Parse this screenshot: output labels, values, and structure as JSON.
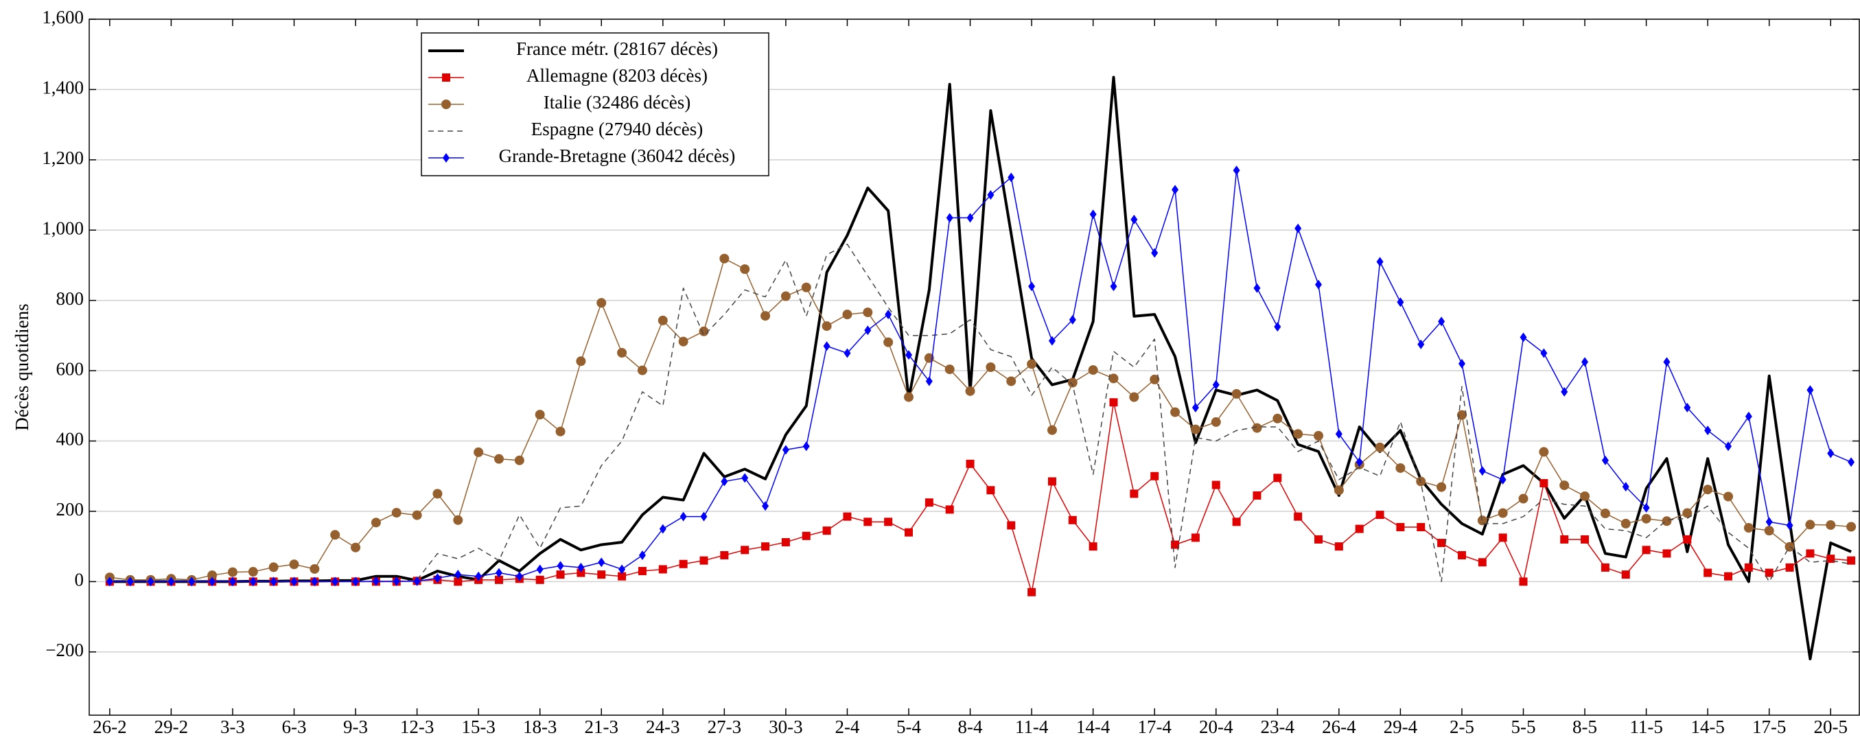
{
  "chart_data": {
    "type": "line",
    "y_label": "Décès quotidiens",
    "categories": [
      "26-2",
      null,
      null,
      "29-2",
      null,
      null,
      "3-3",
      null,
      null,
      "6-3",
      null,
      null,
      "9-3",
      null,
      null,
      "12-3",
      null,
      null,
      "15-3",
      null,
      null,
      "18-3",
      null,
      null,
      "21-3",
      null,
      null,
      "24-3",
      null,
      null,
      "27-3",
      null,
      null,
      "30-3",
      null,
      null,
      "2-4",
      null,
      null,
      "5-4",
      null,
      null,
      "8-4",
      null,
      null,
      "11-4",
      null,
      null,
      "14-4",
      null,
      null,
      "17-4",
      null,
      null,
      "20-4",
      null,
      null,
      "23-4",
      null,
      null,
      "26-4",
      null,
      null,
      "29-4",
      null,
      null,
      "2-5",
      null,
      null,
      "5-5",
      null,
      null,
      "8-5",
      null,
      null,
      "11-5",
      null,
      null,
      "14-5",
      null,
      null,
      "17-5",
      null,
      null,
      "20-5",
      null
    ],
    "ylim": [
      -380,
      1600
    ],
    "yticks": [
      {
        "value": -200,
        "label": "−200"
      },
      0,
      200,
      400,
      600,
      800,
      {
        "value": 1000,
        "label": "1,000"
      },
      {
        "value": 1200,
        "label": "1,200"
      },
      {
        "value": 1400,
        "label": "1,400"
      },
      {
        "value": 1600,
        "label": "1,600"
      }
    ],
    "grid": true,
    "legend": "upper left",
    "series": [
      {
        "name": "France métr. (28167 décès)",
        "color": "#000000",
        "marker": "none",
        "dashed": false,
        "line_width": 4,
        "values": [
          0,
          0,
          0,
          0,
          0,
          0,
          0,
          1,
          1,
          2,
          2,
          3,
          3,
          15,
          15,
          3,
          30,
          15,
          5,
          60,
          30,
          80,
          120,
          90,
          105,
          112,
          190,
          240,
          232,
          365,
          298,
          320,
          292,
          418,
          500,
          880,
          985,
          1120,
          1055,
          520,
          830,
          1415,
          540,
          1340,
          990,
          635,
          560,
          575,
          740,
          1435,
          755,
          760,
          640,
          395,
          545,
          530,
          545,
          515,
          390,
          370,
          245,
          440,
          370,
          430,
          290,
          220,
          165,
          135,
          305,
          330,
          280,
          180,
          245,
          80,
          70,
          265,
          350,
          85,
          350,
          105,
          0,
          585,
          170,
          -220,
          110,
          85
        ]
      },
      {
        "name": "Allemagne (8203 décès)",
        "color": "#e00000",
        "marker": "square",
        "dashed": false,
        "line_width": 1.5,
        "values": [
          0,
          0,
          0,
          0,
          0,
          0,
          0,
          0,
          0,
          0,
          0,
          0,
          0,
          0,
          0,
          2,
          5,
          0,
          5,
          5,
          8,
          5,
          20,
          25,
          20,
          15,
          30,
          35,
          50,
          60,
          75,
          90,
          100,
          112,
          130,
          145,
          185,
          170,
          170,
          140,
          225,
          205,
          335,
          260,
          160,
          -30,
          285,
          175,
          100,
          510,
          250,
          300,
          105,
          125,
          275,
          170,
          245,
          295,
          185,
          120,
          100,
          150,
          190,
          155,
          155,
          110,
          75,
          55,
          125,
          0,
          280,
          120,
          120,
          40,
          20,
          90,
          80,
          120,
          25,
          15,
          40,
          25,
          40,
          80,
          65,
          60
        ]
      },
      {
        "name": "Italie (32486 décès)",
        "color": "#96602e",
        "marker": "circle",
        "dashed": false,
        "line_width": 1.5,
        "values": [
          12,
          5,
          5,
          8,
          5,
          18,
          27,
          28,
          41,
          49,
          36,
          133,
          97,
          168,
          196,
          189,
          250,
          175,
          368,
          349,
          345,
          475,
          427,
          627,
          793,
          651,
          601,
          743,
          683,
          712,
          919,
          889,
          756,
          812,
          837,
          727,
          760,
          766,
          681,
          525,
          636,
          604,
          542,
          610,
          570,
          619,
          431,
          566,
          602,
          578,
          525,
          575,
          482,
          433,
          454,
          534,
          437,
          464,
          420,
          415,
          260,
          333,
          382,
          323,
          285,
          269,
          474,
          174,
          195,
          236,
          369,
          274,
          243,
          194,
          165,
          179,
          172,
          195,
          262,
          242,
          153,
          145,
          99,
          162,
          161,
          156
        ]
      },
      {
        "name": "Espagne (27940 décès)",
        "color": "#444444",
        "marker": "none",
        "dashed": true,
        "line_width": 1.5,
        "values": [
          0,
          0,
          0,
          0,
          0,
          0,
          0,
          0,
          0,
          0,
          0,
          0,
          0,
          0,
          0,
          5,
          80,
          65,
          95,
          60,
          190,
          95,
          210,
          215,
          330,
          400,
          540,
          500,
          835,
          700,
          760,
          830,
          810,
          915,
          755,
          930,
          960,
          870,
          780,
          700,
          700,
          705,
          745,
          660,
          640,
          530,
          610,
          560,
          305,
          655,
          610,
          690,
          40,
          410,
          400,
          430,
          440,
          440,
          370,
          400,
          290,
          325,
          300,
          455,
          280,
          0,
          555,
          165,
          165,
          185,
          235,
          220,
          215,
          150,
          145,
          125,
          175,
          180,
          215,
          140,
          95,
          0,
          100,
          55,
          60,
          50
        ]
      },
      {
        "name": "Grande-Bretagne (36042 décès)",
        "color": "#0000ff",
        "marker": "diamond",
        "dashed": false,
        "line_width": 1.5,
        "values": [
          0,
          0,
          0,
          0,
          0,
          0,
          0,
          0,
          0,
          0,
          0,
          0,
          0,
          1,
          1,
          1,
          10,
          20,
          15,
          25,
          15,
          35,
          45,
          40,
          55,
          35,
          75,
          150,
          185,
          185,
          285,
          295,
          215,
          375,
          385,
          670,
          650,
          715,
          760,
          645,
          570,
          1035,
          1035,
          1100,
          1150,
          840,
          685,
          745,
          1045,
          840,
          1030,
          935,
          1115,
          495,
          560,
          1170,
          835,
          725,
          1005,
          845,
          420,
          340,
          910,
          795,
          675,
          740,
          620,
          315,
          290,
          695,
          650,
          540,
          625,
          345,
          270,
          210,
          625,
          495,
          430,
          385,
          470,
          170,
          160,
          545,
          365,
          340
        ]
      }
    ]
  }
}
